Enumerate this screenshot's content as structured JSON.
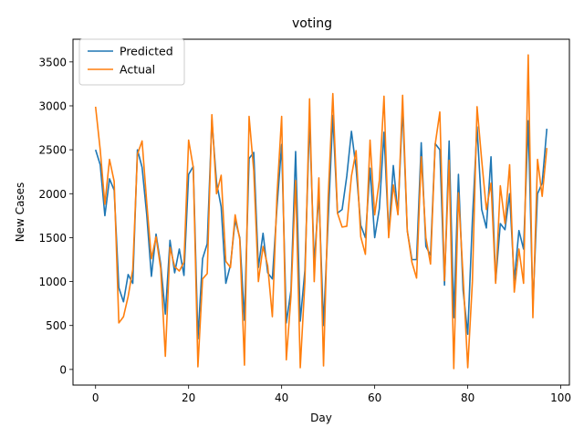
{
  "chart_data": {
    "type": "line",
    "title": "voting",
    "xlabel": "Day",
    "ylabel": "New Cases",
    "xlim": [
      -4.85,
      101.85
    ],
    "ylim": [
      -178,
      3758
    ],
    "x_ticks": [
      0,
      20,
      40,
      60,
      80,
      100
    ],
    "y_ticks": [
      0,
      500,
      1000,
      1500,
      2000,
      2500,
      3000,
      3500
    ],
    "grid": false,
    "legend_position": "top-left",
    "series": [
      {
        "name": "Predicted",
        "color": "#1f77b4",
        "values": [
          2500,
          2330,
          1750,
          2170,
          2040,
          930,
          770,
          1080,
          980,
          2500,
          2300,
          1760,
          1060,
          1540,
          1200,
          630,
          1470,
          1100,
          1370,
          1070,
          2220,
          2310,
          350,
          1260,
          1430,
          2840,
          2130,
          1850,
          980,
          1190,
          1700,
          1500,
          560,
          2400,
          2470,
          1160,
          1550,
          1100,
          1030,
          1850,
          2560,
          530,
          900,
          2480,
          550,
          1130,
          2850,
          1200,
          2000,
          500,
          1700,
          2890,
          1780,
          1820,
          2200,
          2710,
          2290,
          1640,
          1500,
          2290,
          1500,
          1830,
          2700,
          1540,
          2320,
          1770,
          2980,
          1580,
          1250,
          1250,
          2580,
          1400,
          1300,
          2570,
          2500,
          960,
          2600,
          590,
          2220,
          900,
          400,
          1700,
          2760,
          1820,
          1610,
          2420,
          1000,
          1660,
          1590,
          2000,
          1010,
          1580,
          1370,
          2830,
          720,
          2000,
          2120,
          2740
        ]
      },
      {
        "name": "Actual",
        "color": "#ff7f0e",
        "values": [
          2990,
          2500,
          1880,
          2390,
          2140,
          530,
          600,
          830,
          1140,
          2450,
          2600,
          1900,
          1260,
          1510,
          1150,
          150,
          1390,
          1170,
          1120,
          1220,
          2610,
          2300,
          30,
          1030,
          1090,
          2900,
          2000,
          2210,
          1230,
          1160,
          1760,
          1480,
          50,
          2880,
          2260,
          1000,
          1400,
          1180,
          600,
          1990,
          2880,
          110,
          830,
          2150,
          20,
          1000,
          3080,
          1000,
          2180,
          40,
          1960,
          3140,
          1780,
          1620,
          1630,
          2200,
          2490,
          1510,
          1310,
          2610,
          1760,
          2150,
          3110,
          1500,
          2100,
          1760,
          3120,
          1580,
          1220,
          1040,
          2420,
          1500,
          1200,
          2560,
          2930,
          1010,
          2380,
          10,
          2010,
          1060,
          20,
          1000,
          2990,
          2380,
          1820,
          2120,
          980,
          2090,
          1660,
          2330,
          880,
          1370,
          980,
          3580,
          590,
          2390,
          1970,
          2520
        ]
      }
    ]
  }
}
